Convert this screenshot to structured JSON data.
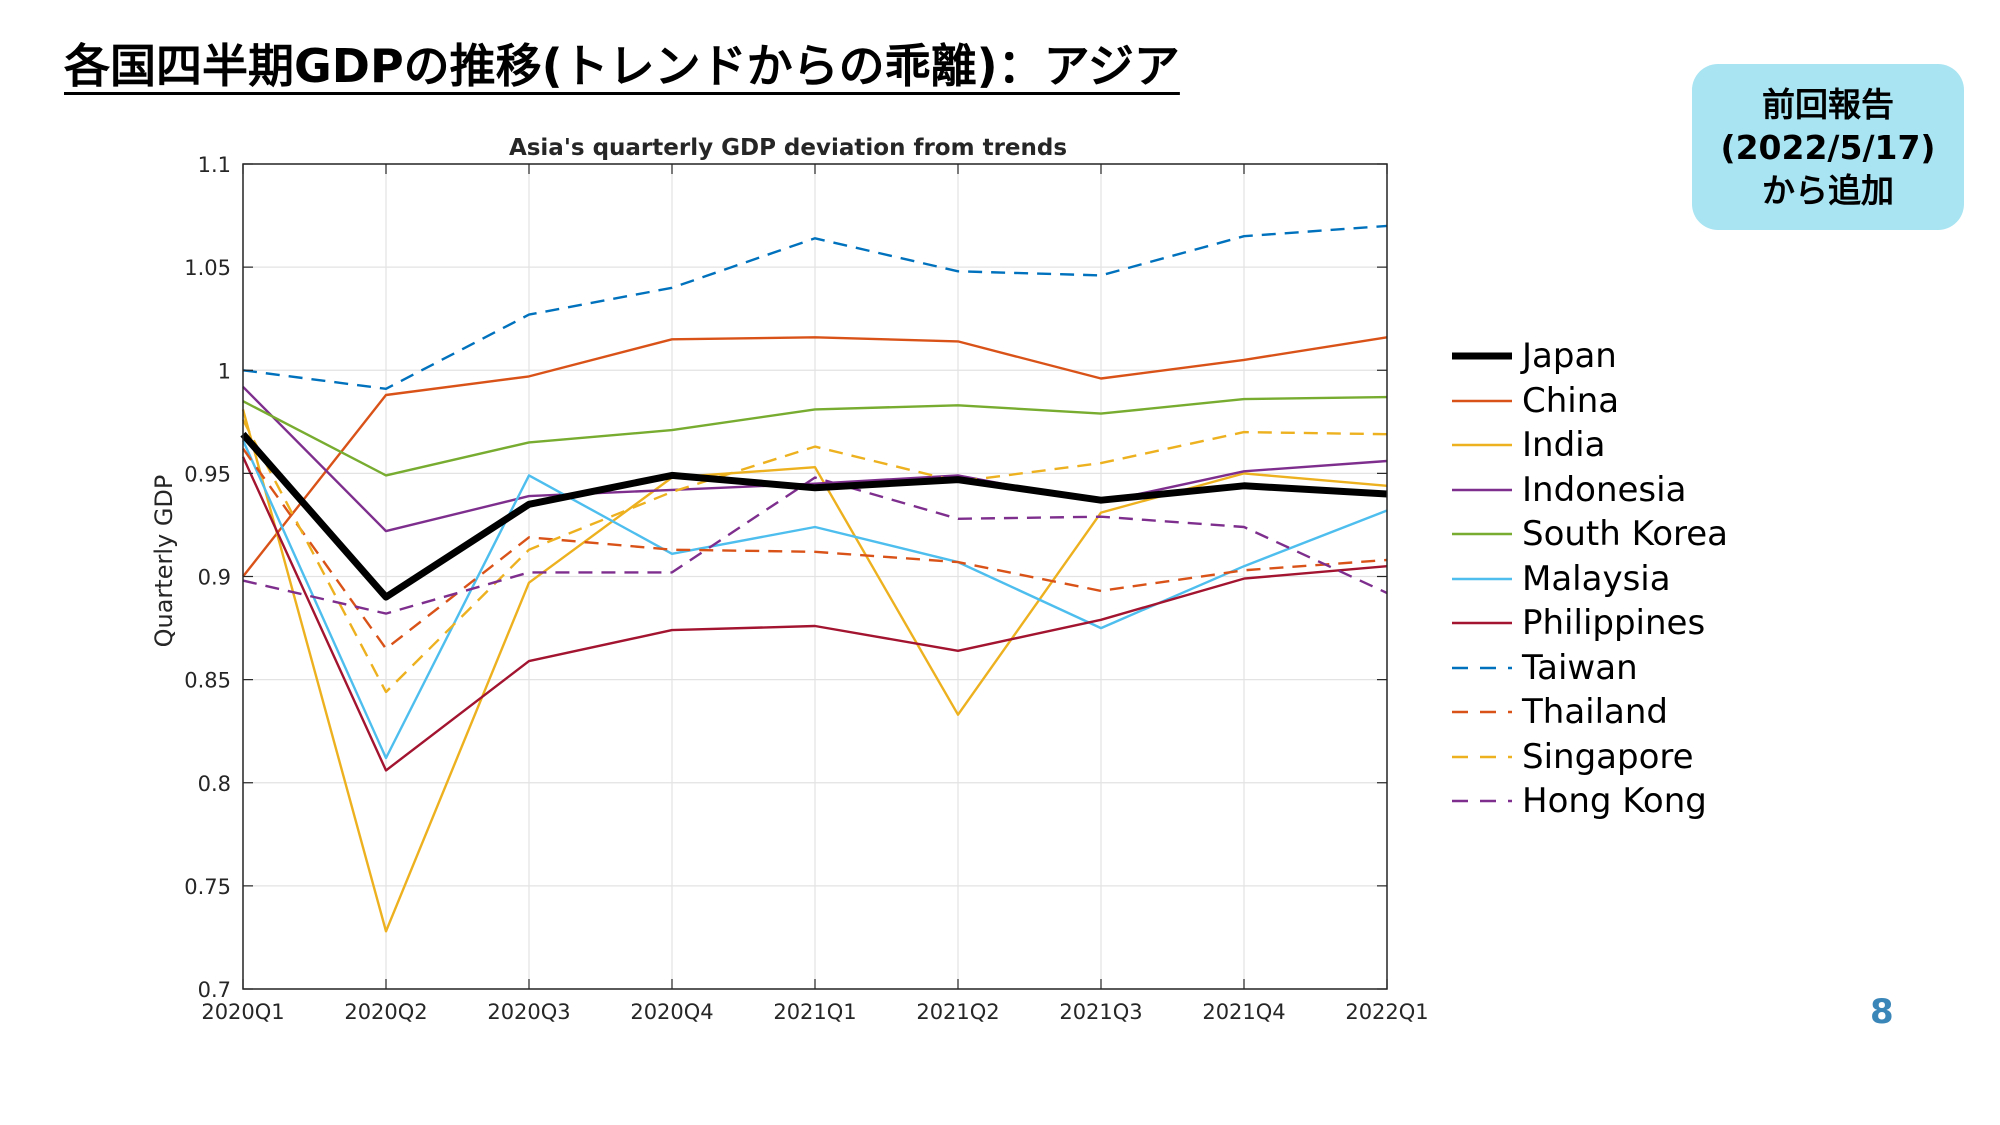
{
  "slide": {
    "title": "各国四半期GDPの推移(トレンドからの乖離)：アジア",
    "badge_lines": [
      "前回報告",
      "(2022/5/17)",
      "から追加"
    ],
    "page_number": "8"
  },
  "chart_data": {
    "type": "line",
    "title": "Asia's quarterly GDP deviation from trends",
    "xlabel": "",
    "ylabel": "Quarterly GDP",
    "categories": [
      "2020Q1",
      "2020Q2",
      "2020Q3",
      "2020Q4",
      "2021Q1",
      "2021Q2",
      "2021Q3",
      "2021Q4",
      "2022Q1"
    ],
    "ylim": [
      0.7,
      1.1
    ],
    "yticks": [
      "0.7",
      "0.75",
      "0.8",
      "0.85",
      "0.9",
      "0.95",
      "1",
      "1.05",
      "1.1"
    ],
    "grid": true,
    "legend_position": "right",
    "series": [
      {
        "name": "Japan",
        "color": "#000000",
        "dash": "solid",
        "width": "thick",
        "values": [
          0.969,
          0.89,
          0.935,
          0.949,
          0.943,
          0.947,
          0.937,
          0.944,
          0.94
        ]
      },
      {
        "name": "China",
        "color": "#d95319",
        "dash": "solid",
        "width": "normal",
        "values": [
          0.9,
          0.988,
          0.997,
          1.015,
          1.016,
          1.014,
          0.996,
          1.005,
          1.016
        ]
      },
      {
        "name": "India",
        "color": "#edb120",
        "dash": "solid",
        "width": "normal",
        "values": [
          0.981,
          0.728,
          0.897,
          0.948,
          0.953,
          0.833,
          0.931,
          0.95,
          0.944
        ]
      },
      {
        "name": "Indonesia",
        "color": "#7e2f8e",
        "dash": "solid",
        "width": "normal",
        "values": [
          0.992,
          0.922,
          0.939,
          0.942,
          0.945,
          0.949,
          0.936,
          0.951,
          0.956
        ]
      },
      {
        "name": "South Korea",
        "color": "#77ac30",
        "dash": "solid",
        "width": "normal",
        "values": [
          0.985,
          0.949,
          0.965,
          0.971,
          0.981,
          0.983,
          0.979,
          0.986,
          0.987
        ]
      },
      {
        "name": "Malaysia",
        "color": "#4dbeee",
        "dash": "solid",
        "width": "normal",
        "values": [
          0.966,
          0.812,
          0.949,
          0.911,
          0.924,
          0.907,
          0.875,
          0.905,
          0.932
        ]
      },
      {
        "name": "Philippines",
        "color": "#a2142f",
        "dash": "solid",
        "width": "normal",
        "values": [
          0.958,
          0.806,
          0.859,
          0.874,
          0.876,
          0.864,
          0.879,
          0.899,
          0.905
        ]
      },
      {
        "name": "Taiwan",
        "color": "#0072bd",
        "dash": "dashed",
        "width": "normal",
        "values": [
          1.0,
          0.991,
          1.027,
          1.04,
          1.064,
          1.048,
          1.046,
          1.065,
          1.07
        ]
      },
      {
        "name": "Thailand",
        "color": "#d95319",
        "dash": "dashed",
        "width": "normal",
        "values": [
          0.962,
          0.865,
          0.919,
          0.913,
          0.912,
          0.907,
          0.893,
          0.903,
          0.908
        ]
      },
      {
        "name": "Singapore",
        "color": "#edb120",
        "dash": "dashed",
        "width": "normal",
        "values": [
          0.976,
          0.844,
          0.913,
          0.941,
          0.963,
          0.946,
          0.955,
          0.97,
          0.969
        ]
      },
      {
        "name": "Hong Kong",
        "color": "#7e2f8e",
        "dash": "dashed",
        "width": "normal",
        "values": [
          0.898,
          0.882,
          0.902,
          0.902,
          0.948,
          0.928,
          0.929,
          0.924,
          0.892
        ]
      }
    ]
  }
}
